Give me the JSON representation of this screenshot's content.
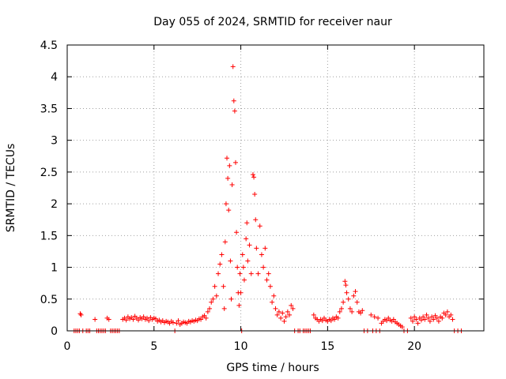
{
  "chart_data": {
    "type": "scatter",
    "title": "Day 055 of 2024, SRMTID for receiver naur",
    "xlabel": "GPS time / hours",
    "ylabel": "SRMTID / TECUs",
    "xlim": [
      0,
      24
    ],
    "ylim": [
      0,
      4.5
    ],
    "xticks": [
      0,
      5,
      10,
      15,
      20
    ],
    "yticks": [
      0,
      0.5,
      1,
      1.5,
      2,
      2.5,
      3,
      3.5,
      4,
      4.5
    ],
    "grid": true,
    "marker": "+",
    "colors": {
      "series": "#ff0000",
      "grid": "#a0a0a0",
      "axis": "#000000"
    },
    "series": [
      {
        "name": "SRMTID",
        "points": [
          [
            0.4,
            0
          ],
          [
            0.5,
            0
          ],
          [
            0.6,
            0
          ],
          [
            0.7,
            0
          ],
          [
            0.75,
            0.27
          ],
          [
            0.8,
            0.25
          ],
          [
            0.9,
            0
          ],
          [
            1.1,
            0
          ],
          [
            1.2,
            0
          ],
          [
            1.3,
            0
          ],
          [
            1.6,
            0.18
          ],
          [
            1.7,
            0
          ],
          [
            1.8,
            0
          ],
          [
            1.9,
            0
          ],
          [
            2.0,
            0
          ],
          [
            2.1,
            0
          ],
          [
            2.2,
            0
          ],
          [
            2.3,
            0.2
          ],
          [
            2.4,
            0.18
          ],
          [
            2.5,
            0
          ],
          [
            2.6,
            0
          ],
          [
            2.7,
            0
          ],
          [
            2.8,
            0
          ],
          [
            2.9,
            0
          ],
          [
            3.0,
            0
          ],
          [
            3.2,
            0.18
          ],
          [
            3.3,
            0.2
          ],
          [
            3.4,
            0.17
          ],
          [
            3.5,
            0.22
          ],
          [
            3.6,
            0.19
          ],
          [
            3.7,
            0.21
          ],
          [
            3.8,
            0.18
          ],
          [
            3.9,
            0.23
          ],
          [
            4.0,
            0.2
          ],
          [
            4.1,
            0.17
          ],
          [
            4.2,
            0.21
          ],
          [
            4.3,
            0.19
          ],
          [
            4.4,
            0.22
          ],
          [
            4.5,
            0.18
          ],
          [
            4.6,
            0.2
          ],
          [
            4.7,
            0.16
          ],
          [
            4.8,
            0.21
          ],
          [
            4.9,
            0.18
          ],
          [
            5.0,
            0.2
          ],
          [
            5.1,
            0.19
          ],
          [
            5.2,
            0.15
          ],
          [
            5.3,
            0.17
          ],
          [
            5.4,
            0.14
          ],
          [
            5.5,
            0.16
          ],
          [
            5.6,
            0.13
          ],
          [
            5.7,
            0.15
          ],
          [
            5.8,
            0.14
          ],
          [
            5.9,
            0.12
          ],
          [
            6.0,
            0.15
          ],
          [
            6.1,
            0.13
          ],
          [
            6.2,
            0
          ],
          [
            6.3,
            0.12
          ],
          [
            6.4,
            0.16
          ],
          [
            6.5,
            0.1
          ],
          [
            6.6,
            0.12
          ],
          [
            6.7,
            0.14
          ],
          [
            6.8,
            0.13
          ],
          [
            6.9,
            0.12
          ],
          [
            7.0,
            0.15
          ],
          [
            7.1,
            0.14
          ],
          [
            7.2,
            0.16
          ],
          [
            7.3,
            0.15
          ],
          [
            7.4,
            0.17
          ],
          [
            7.5,
            0.16
          ],
          [
            7.6,
            0.19
          ],
          [
            7.7,
            0.18
          ],
          [
            7.8,
            0.22
          ],
          [
            7.9,
            0.24
          ],
          [
            8.0,
            0.2
          ],
          [
            8.1,
            0.3
          ],
          [
            8.2,
            0.35
          ],
          [
            8.3,
            0.45
          ],
          [
            8.4,
            0.5
          ],
          [
            8.5,
            0.7
          ],
          [
            8.6,
            0.55
          ],
          [
            8.7,
            0.9
          ],
          [
            8.8,
            1.05
          ],
          [
            8.9,
            1.2
          ],
          [
            9.0,
            0.7
          ],
          [
            9.05,
            0.35
          ],
          [
            9.1,
            1.4
          ],
          [
            9.15,
            2.0
          ],
          [
            9.2,
            2.72
          ],
          [
            9.25,
            2.4
          ],
          [
            9.3,
            1.9
          ],
          [
            9.35,
            2.6
          ],
          [
            9.4,
            1.1
          ],
          [
            9.45,
            0.5
          ],
          [
            9.5,
            2.3
          ],
          [
            9.55,
            4.16
          ],
          [
            9.6,
            3.62
          ],
          [
            9.65,
            3.46
          ],
          [
            9.7,
            2.65
          ],
          [
            9.75,
            1.55
          ],
          [
            9.8,
            1.0
          ],
          [
            9.85,
            0.6
          ],
          [
            9.9,
            0.4
          ],
          [
            9.95,
            0.9
          ],
          [
            10.0,
            0.6
          ],
          [
            10.05,
            0
          ],
          [
            10.1,
            1.2
          ],
          [
            10.15,
            1.0
          ],
          [
            10.2,
            0.8
          ],
          [
            10.3,
            1.45
          ],
          [
            10.35,
            1.7
          ],
          [
            10.4,
            1.1
          ],
          [
            10.5,
            1.35
          ],
          [
            10.6,
            0.9
          ],
          [
            10.7,
            2.46
          ],
          [
            10.75,
            2.42
          ],
          [
            10.8,
            2.15
          ],
          [
            10.85,
            1.75
          ],
          [
            10.9,
            1.3
          ],
          [
            11.0,
            0.9
          ],
          [
            11.1,
            1.65
          ],
          [
            11.2,
            1.2
          ],
          [
            11.3,
            1.0
          ],
          [
            11.4,
            1.3
          ],
          [
            11.5,
            0.8
          ],
          [
            11.6,
            0.9
          ],
          [
            11.7,
            0.7
          ],
          [
            11.8,
            0.45
          ],
          [
            11.9,
            0.55
          ],
          [
            12.0,
            0.35
          ],
          [
            12.1,
            0.25
          ],
          [
            12.2,
            0.3
          ],
          [
            12.3,
            0.2
          ],
          [
            12.4,
            0.28
          ],
          [
            12.5,
            0.15
          ],
          [
            12.6,
            0.22
          ],
          [
            12.7,
            0.3
          ],
          [
            12.8,
            0.25
          ],
          [
            12.9,
            0.4
          ],
          [
            13.0,
            0.35
          ],
          [
            13.1,
            0
          ],
          [
            13.3,
            0
          ],
          [
            13.4,
            0
          ],
          [
            13.6,
            0
          ],
          [
            13.7,
            0
          ],
          [
            13.8,
            0
          ],
          [
            13.9,
            0
          ],
          [
            14.0,
            0
          ],
          [
            14.2,
            0.25
          ],
          [
            14.3,
            0.2
          ],
          [
            14.4,
            0.18
          ],
          [
            14.5,
            0.15
          ],
          [
            14.6,
            0.18
          ],
          [
            14.7,
            0.16
          ],
          [
            14.8,
            0.2
          ],
          [
            14.9,
            0.17
          ],
          [
            15.0,
            0.15
          ],
          [
            15.1,
            0.18
          ],
          [
            15.2,
            0.16
          ],
          [
            15.3,
            0.2
          ],
          [
            15.4,
            0.18
          ],
          [
            15.5,
            0.22
          ],
          [
            15.6,
            0.2
          ],
          [
            15.7,
            0.3
          ],
          [
            15.8,
            0.35
          ],
          [
            15.9,
            0.45
          ],
          [
            16.0,
            0.78
          ],
          [
            16.05,
            0.72
          ],
          [
            16.1,
            0.6
          ],
          [
            16.2,
            0.5
          ],
          [
            16.3,
            0.35
          ],
          [
            16.4,
            0.3
          ],
          [
            16.5,
            0.55
          ],
          [
            16.6,
            0.62
          ],
          [
            16.7,
            0.45
          ],
          [
            16.8,
            0.3
          ],
          [
            16.9,
            0.28
          ],
          [
            17.0,
            0.32
          ],
          [
            17.1,
            0
          ],
          [
            17.3,
            0
          ],
          [
            17.5,
            0.25
          ],
          [
            17.6,
            0
          ],
          [
            17.7,
            0.22
          ],
          [
            17.8,
            0
          ],
          [
            17.9,
            0.2
          ],
          [
            18.0,
            0
          ],
          [
            18.1,
            0.12
          ],
          [
            18.2,
            0.15
          ],
          [
            18.3,
            0.18
          ],
          [
            18.4,
            0.16
          ],
          [
            18.5,
            0.2
          ],
          [
            18.6,
            0.17
          ],
          [
            18.7,
            0.15
          ],
          [
            18.8,
            0.18
          ],
          [
            18.9,
            0.14
          ],
          [
            19.0,
            0.12
          ],
          [
            19.1,
            0.1
          ],
          [
            19.2,
            0.08
          ],
          [
            19.3,
            0.06
          ],
          [
            19.4,
            0
          ],
          [
            19.6,
            0
          ],
          [
            19.8,
            0.2
          ],
          [
            19.9,
            0.15
          ],
          [
            20.0,
            0.22
          ],
          [
            20.1,
            0.18
          ],
          [
            20.2,
            0.12
          ],
          [
            20.3,
            0.2
          ],
          [
            20.4,
            0.17
          ],
          [
            20.5,
            0.22
          ],
          [
            20.6,
            0.18
          ],
          [
            20.7,
            0.25
          ],
          [
            20.8,
            0.2
          ],
          [
            20.9,
            0.15
          ],
          [
            21.0,
            0.22
          ],
          [
            21.1,
            0.18
          ],
          [
            21.2,
            0.24
          ],
          [
            21.3,
            0.2
          ],
          [
            21.4,
            0.15
          ],
          [
            21.5,
            0.22
          ],
          [
            21.6,
            0.2
          ],
          [
            21.7,
            0.28
          ],
          [
            21.8,
            0.25
          ],
          [
            21.9,
            0.3
          ],
          [
            22.0,
            0.22
          ],
          [
            22.1,
            0.25
          ],
          [
            22.2,
            0.18
          ],
          [
            22.3,
            0
          ],
          [
            22.5,
            0
          ],
          [
            22.7,
            0
          ]
        ]
      }
    ]
  }
}
